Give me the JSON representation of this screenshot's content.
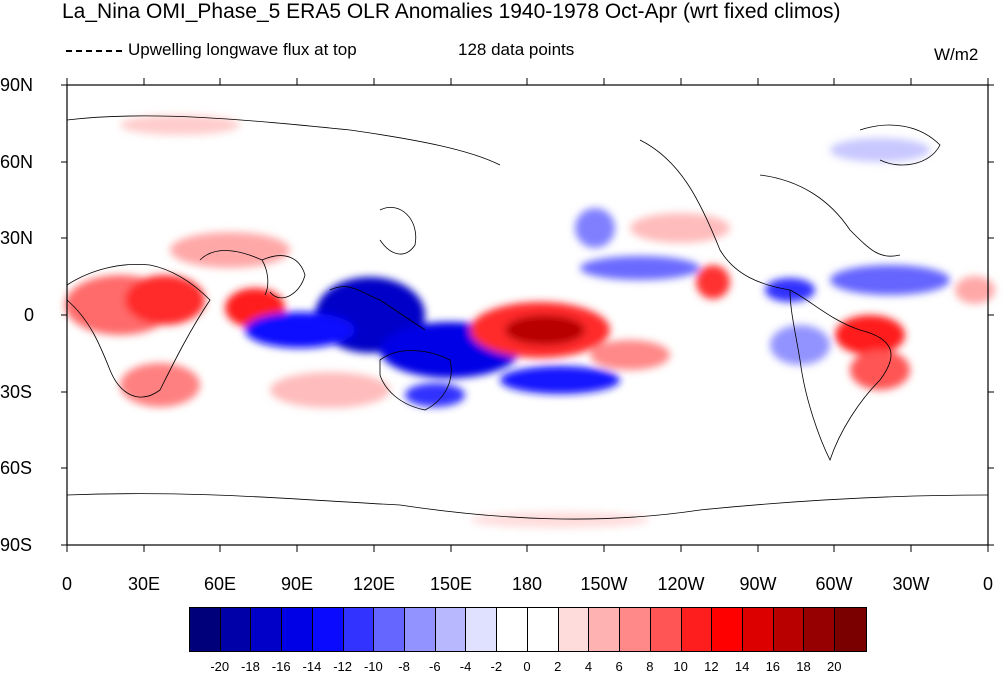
{
  "title": "La_Nina OMI_Phase_5 ERA5 OLR Anomalies 1940-1978 Oct-Apr (wrt fixed climos)",
  "variable_label": "Upwelling longwave flux at top",
  "data_points_label": "128 data points",
  "units": "W/m2",
  "lat_ticks": [
    "90N",
    "60N",
    "30N",
    "0",
    "30S",
    "60S",
    "90S"
  ],
  "lon_ticks": [
    "0",
    "30E",
    "60E",
    "90E",
    "120E",
    "150E",
    "180",
    "150W",
    "120W",
    "90W",
    "60W",
    "30W",
    "0"
  ],
  "colorbar": {
    "labels": [
      "-20",
      "-18",
      "-16",
      "-14",
      "-12",
      "-10",
      "-8",
      "-6",
      "-4",
      "-2",
      "0",
      "2",
      "4",
      "6",
      "8",
      "10",
      "12",
      "14",
      "16",
      "18",
      "20"
    ],
    "colors": [
      "#00007a",
      "#0000a8",
      "#0000c8",
      "#0000e6",
      "#0a0aff",
      "#3333ff",
      "#6565ff",
      "#9393ff",
      "#b8b8ff",
      "#e0e0ff",
      "#ffffff",
      "#ffffff",
      "#ffdcdc",
      "#ffb2b2",
      "#ff8888",
      "#ff5555",
      "#ff1e1e",
      "#ff0000",
      "#dd0000",
      "#b80000",
      "#960000",
      "#7a0000"
    ]
  }
}
